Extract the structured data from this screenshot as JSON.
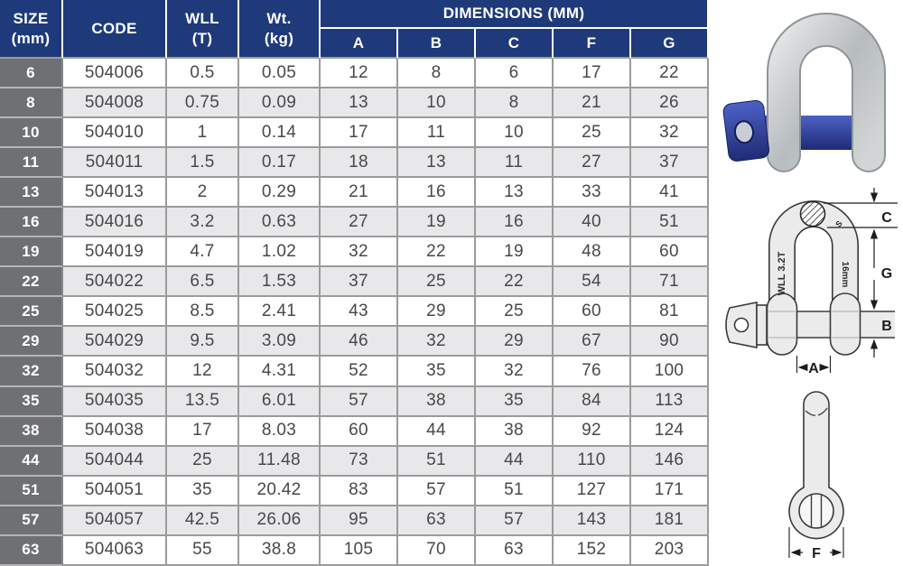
{
  "table": {
    "headers": {
      "size_line1": "SIZE",
      "size_line2": "(mm)",
      "code": "CODE",
      "wll_line1": "WLL",
      "wll_line2": "(T)",
      "wt_line1": "Wt.",
      "wt_line2": "(kg)",
      "dimensions": "DIMENSIONS (MM)",
      "dim_cols": [
        "A",
        "B",
        "C",
        "F",
        "G"
      ]
    },
    "rows": [
      [
        "6",
        "504006",
        "0.5",
        "0.05",
        "12",
        "8",
        "6",
        "17",
        "22"
      ],
      [
        "8",
        "504008",
        "0.75",
        "0.09",
        "13",
        "10",
        "8",
        "21",
        "26"
      ],
      [
        "10",
        "504010",
        "1",
        "0.14",
        "17",
        "11",
        "10",
        "25",
        "32"
      ],
      [
        "11",
        "504011",
        "1.5",
        "0.17",
        "18",
        "13",
        "11",
        "27",
        "37"
      ],
      [
        "13",
        "504013",
        "2",
        "0.29",
        "21",
        "16",
        "13",
        "33",
        "41"
      ],
      [
        "16",
        "504016",
        "3.2",
        "0.63",
        "27",
        "19",
        "16",
        "40",
        "51"
      ],
      [
        "19",
        "504019",
        "4.7",
        "1.02",
        "32",
        "22",
        "19",
        "48",
        "60"
      ],
      [
        "22",
        "504022",
        "6.5",
        "1.53",
        "37",
        "25",
        "22",
        "54",
        "71"
      ],
      [
        "25",
        "504025",
        "8.5",
        "2.41",
        "43",
        "29",
        "25",
        "60",
        "81"
      ],
      [
        "29",
        "504029",
        "9.5",
        "3.09",
        "46",
        "32",
        "29",
        "67",
        "90"
      ],
      [
        "32",
        "504032",
        "12",
        "4.31",
        "52",
        "35",
        "32",
        "76",
        "100"
      ],
      [
        "35",
        "504035",
        "13.5",
        "6.01",
        "57",
        "38",
        "35",
        "84",
        "113"
      ],
      [
        "38",
        "504038",
        "17",
        "8.03",
        "60",
        "44",
        "38",
        "92",
        "124"
      ],
      [
        "44",
        "504044",
        "25",
        "11.48",
        "73",
        "51",
        "44",
        "110",
        "146"
      ],
      [
        "51",
        "504051",
        "35",
        "20.42",
        "83",
        "57",
        "51",
        "127",
        "171"
      ],
      [
        "57",
        "504057",
        "42.5",
        "26.06",
        "95",
        "63",
        "57",
        "143",
        "181"
      ],
      [
        "63",
        "504063",
        "55",
        "38.8",
        "105",
        "70",
        "63",
        "152",
        "203"
      ]
    ]
  },
  "figures": {
    "photo_alt": "galvanized d-shackle with blue screw pin",
    "front_diagram": {
      "label_c": "C",
      "label_g": "G",
      "label_b": "B",
      "label_a": "A",
      "leg_text_left": "WLL 3.2T",
      "leg_text_right": "16mm",
      "stamp": "S"
    },
    "side_diagram": {
      "label_f": "F"
    }
  },
  "colors": {
    "header_navy": "#1e3a7a",
    "size_column_gray": "#6f7073",
    "row_alt_gray": "#e8e8ea",
    "grid_gray": "#9b9b9b",
    "cell_text": "#48484a",
    "pin_blue": "#2e3f9e"
  }
}
